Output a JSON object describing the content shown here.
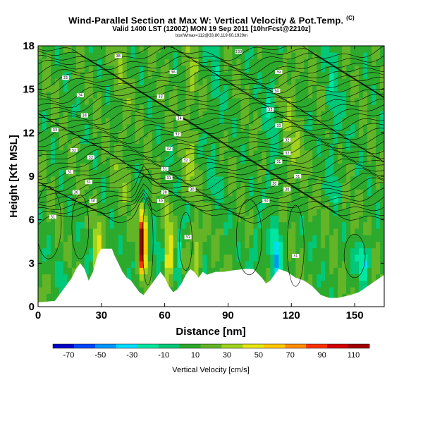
{
  "header": {
    "title": "Wind-Parallel Section at Max W: Vertical Velocity & Pot.Temp.",
    "title_mark": "(C)",
    "subtitle": "Valid 1400 LST (1200Z) MON 19 Sep 2011 [10hrFcst@2210z]",
    "subtitle2": "box/Wmax=112@33.80,119.60,1929m"
  },
  "chart_data": {
    "type": "heatmap",
    "xlabel": "Distance [nm]",
    "ylabel": "Height [Kft MSL]",
    "xlim": [
      0,
      164
    ],
    "ylim": [
      0,
      18
    ],
    "x_ticks": [
      "0",
      "30",
      "60",
      "90",
      "120",
      "150"
    ],
    "y_ticks": [
      "0",
      "3",
      "6",
      "9",
      "12",
      "15",
      "18"
    ],
    "colorbar": {
      "title": "Vertical Velocity [cm/s]",
      "labels": [
        "-70",
        "-50",
        "-30",
        "-10",
        "10",
        "30",
        "50",
        "70",
        "90",
        "110"
      ],
      "colors": [
        "#0000c8",
        "#0046ff",
        "#0096ff",
        "#00dcff",
        "#00e6a0",
        "#00c878",
        "#2daa2d",
        "#64b428",
        "#a0d21e",
        "#e6e614",
        "#ffc800",
        "#ff8c00",
        "#ff3200",
        "#d20000",
        "#a00000"
      ]
    },
    "updraft_max": {
      "value": 112,
      "x": 49.5,
      "height": 4.5
    },
    "contour_labels": [
      {
        "x": 38,
        "y": 17.3,
        "text": "38"
      },
      {
        "x": 95,
        "y": 17.6,
        "text": "330"
      },
      {
        "x": 13,
        "y": 15.8,
        "text": "33"
      },
      {
        "x": 64,
        "y": 16.2,
        "text": "36"
      },
      {
        "x": 114,
        "y": 16.2,
        "text": "39"
      },
      {
        "x": 20,
        "y": 14.6,
        "text": "34"
      },
      {
        "x": 58,
        "y": 14.5,
        "text": "33"
      },
      {
        "x": 113,
        "y": 14.9,
        "text": "34"
      },
      {
        "x": 22,
        "y": 13.2,
        "text": "34"
      },
      {
        "x": 67,
        "y": 13.0,
        "text": "34"
      },
      {
        "x": 110,
        "y": 13.6,
        "text": "33"
      },
      {
        "x": 8,
        "y": 12.2,
        "text": "33"
      },
      {
        "x": 66,
        "y": 11.9,
        "text": "32"
      },
      {
        "x": 114,
        "y": 12.5,
        "text": "33"
      },
      {
        "x": 17,
        "y": 10.8,
        "text": "32"
      },
      {
        "x": 62,
        "y": 10.9,
        "text": "32"
      },
      {
        "x": 118,
        "y": 11.5,
        "text": "32"
      },
      {
        "x": 25,
        "y": 10.3,
        "text": "32"
      },
      {
        "x": 70,
        "y": 10.1,
        "text": "32"
      },
      {
        "x": 118,
        "y": 10.6,
        "text": "32"
      },
      {
        "x": 15,
        "y": 9.3,
        "text": "31"
      },
      {
        "x": 60,
        "y": 9.5,
        "text": "31"
      },
      {
        "x": 114,
        "y": 10.0,
        "text": "31"
      },
      {
        "x": 24,
        "y": 8.6,
        "text": "31"
      },
      {
        "x": 62,
        "y": 8.9,
        "text": "31"
      },
      {
        "x": 123,
        "y": 9.0,
        "text": "31"
      },
      {
        "x": 18,
        "y": 7.9,
        "text": "30"
      },
      {
        "x": 60,
        "y": 7.9,
        "text": "30"
      },
      {
        "x": 73,
        "y": 8.1,
        "text": "30"
      },
      {
        "x": 112,
        "y": 8.5,
        "text": "30"
      },
      {
        "x": 118,
        "y": 8.1,
        "text": "30"
      },
      {
        "x": 26,
        "y": 7.3,
        "text": "30"
      },
      {
        "x": 58,
        "y": 7.3,
        "text": "30"
      },
      {
        "x": 108,
        "y": 7.3,
        "text": "30"
      },
      {
        "x": 7,
        "y": 6.2,
        "text": "31"
      },
      {
        "x": 71,
        "y": 4.8,
        "text": "31"
      },
      {
        "x": 122,
        "y": 3.5,
        "text": "31"
      }
    ]
  }
}
